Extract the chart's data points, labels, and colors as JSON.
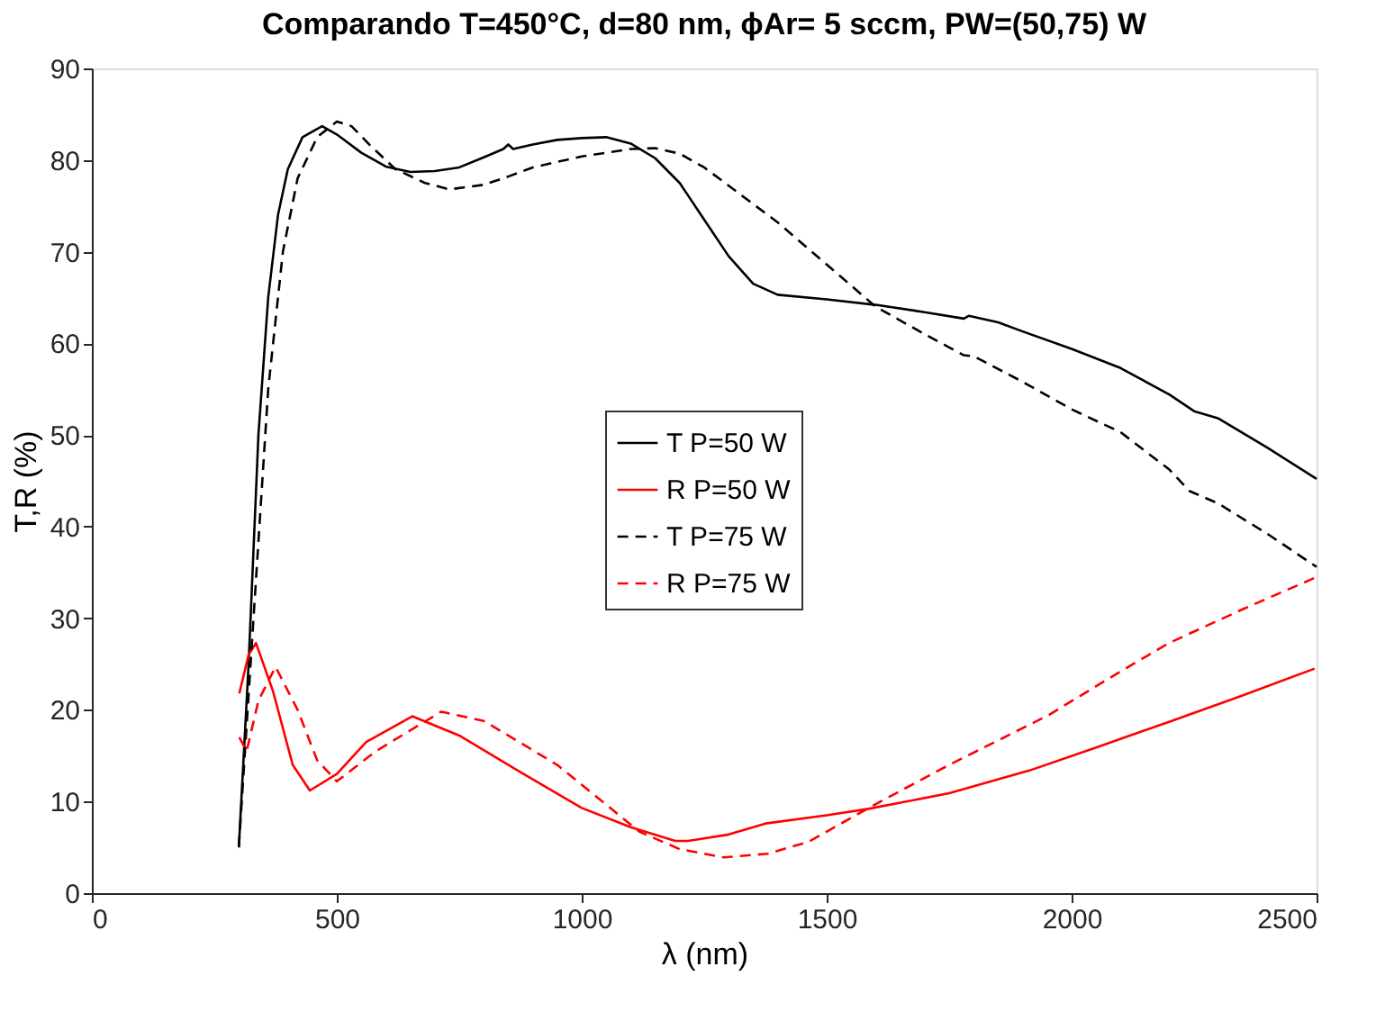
{
  "chart_data": {
    "type": "line",
    "title": "Comparando T=450°C, d=80 nm, ϕAr= 5 sccm, PW=(50,75) W",
    "xlabel": "λ (nm)",
    "ylabel": "T,R (%)",
    "xlim": [
      0,
      2500
    ],
    "xticks": [
      0,
      500,
      1000,
      1500,
      2000,
      2500
    ],
    "ylim": [
      0,
      90
    ],
    "yticks": [
      0,
      10,
      20,
      30,
      40,
      50,
      60,
      70,
      80,
      90
    ],
    "grid": false,
    "legend": "center",
    "marker": "none",
    "series": [
      {
        "name": "T P=50 W",
        "color": "#000000",
        "line_style": "solid",
        "x": [
          300,
          320,
          340,
          360,
          380,
          400,
          430,
          470,
          500,
          550,
          600,
          650,
          700,
          750,
          800,
          840,
          850,
          860,
          900,
          950,
          1000,
          1050,
          1100,
          1150,
          1200,
          1250,
          1300,
          1350,
          1400,
          1500,
          1600,
          1700,
          1780,
          1790,
          1850,
          1900,
          2000,
          2100,
          2200,
          2250,
          2300,
          2400,
          2500
        ],
        "values": [
          5,
          25,
          50,
          65,
          74,
          79,
          82.5,
          83.7,
          82.8,
          80.8,
          79.3,
          78.7,
          78.8,
          79.2,
          80.3,
          81.2,
          81.7,
          81.2,
          81.7,
          82.2,
          82.4,
          82.5,
          81.8,
          80.2,
          77.5,
          73.5,
          69.5,
          66.5,
          65.3,
          64.8,
          64.2,
          63.4,
          62.7,
          63.0,
          62.3,
          61.3,
          59.4,
          57.3,
          54.4,
          52.6,
          51.8,
          48.6,
          45.2
        ]
      },
      {
        "name": "R P=50 W",
        "color": "#ff0000",
        "line_style": "solid",
        "x": [
          301,
          320,
          335,
          370,
          410,
          445,
          500,
          560,
          654,
          750,
          875,
          1000,
          1100,
          1191,
          1217,
          1300,
          1375,
          1500,
          1585,
          1750,
          1915,
          2050,
          2199,
          2350,
          2496
        ],
        "values": [
          21.8,
          26,
          27.3,
          22,
          14,
          11.2,
          13,
          16.5,
          19.3,
          17.2,
          13.2,
          9.3,
          7.2,
          5.7,
          5.7,
          6.4,
          7.6,
          8.5,
          9.2,
          10.9,
          13.4,
          15.9,
          18.7,
          21.6,
          24.5
        ]
      },
      {
        "name": "T P=75 W",
        "color": "#000000",
        "line_style": "dashed",
        "x": [
          300,
          330,
          360,
          390,
          420,
          460,
          500,
          530,
          570,
          620,
          680,
          730,
          800,
          850,
          900,
          1000,
          1100,
          1150,
          1200,
          1250,
          1300,
          1400,
          1500,
          1600,
          1700,
          1780,
          1800,
          1900,
          2000,
          2100,
          2200,
          2240,
          2300,
          2400,
          2500
        ],
        "values": [
          5,
          30,
          55,
          70,
          78,
          82.5,
          84.2,
          83.7,
          81.5,
          79,
          77.5,
          76.8,
          77.3,
          78.2,
          79.2,
          80.4,
          81.2,
          81.3,
          80.7,
          79.2,
          77.2,
          73.2,
          68.6,
          64,
          61,
          58.7,
          58.6,
          55.8,
          52.8,
          50.3,
          46.2,
          43.9,
          42.5,
          39.2,
          35.6
        ]
      },
      {
        "name": "R P=75 W",
        "color": "#ff0000",
        "line_style": "dashed",
        "x": [
          301,
          316,
          340,
          375,
          420,
          460,
          500,
          580,
          713,
          800,
          950,
          1118,
          1200,
          1290,
          1380,
          1463,
          1596,
          1750,
          1952,
          2100,
          2199,
          2350,
          2496
        ],
        "values": [
          17,
          15.5,
          21,
          24.7,
          20,
          14.5,
          12.2,
          15.5,
          19.8,
          18.8,
          14,
          6.7,
          4.8,
          3.9,
          4.3,
          5.6,
          9.6,
          14,
          19.4,
          24.2,
          27.3,
          31,
          34.4
        ]
      }
    ]
  }
}
